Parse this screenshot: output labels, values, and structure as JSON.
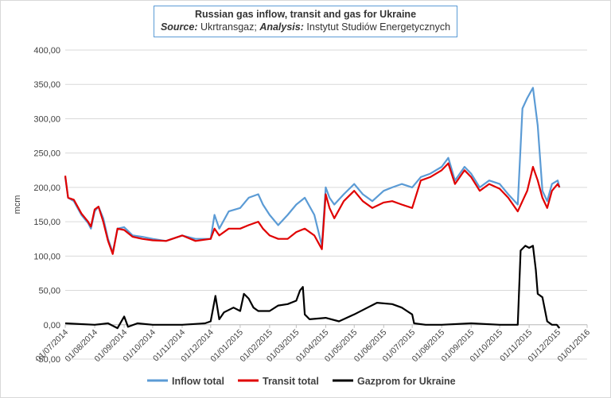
{
  "chart_data": {
    "type": "line",
    "title": "Russian gas inflow, transit and gas for Ukraine",
    "subtitle": {
      "source_label": "Source:",
      "source_value": "Ukrtransgaz;",
      "analysis_label": "Analysis:",
      "analysis_value": "Instytut Studiów Energetycznych"
    },
    "ylabel": "mcm",
    "xlabel": "",
    "ylim": [
      -50,
      400
    ],
    "xlim": [
      "2014-07-01",
      "2016-01-01"
    ],
    "grid": true,
    "legend_position": "bottom",
    "yticks": [
      "-50,00",
      "0,00",
      "50,00",
      "100,00",
      "150,00",
      "200,00",
      "250,00",
      "300,00",
      "350,00",
      "400,00"
    ],
    "xticks": [
      "01/07/2014",
      "01/08/2014",
      "01/09/2014",
      "01/10/2014",
      "01/11/2014",
      "01/12/2014",
      "01/01/2015",
      "01/02/2015",
      "01/03/2015",
      "01/04/2015",
      "01/05/2015",
      "01/06/2015",
      "01/07/2015",
      "01/08/2015",
      "01/09/2015",
      "01/10/2015",
      "01/11/2015",
      "01/12/2015",
      "01/01/2016"
    ],
    "series": [
      {
        "name": "Inflow total",
        "color": "#5b9bd5",
        "points": [
          [
            "2014-07-01",
            215
          ],
          [
            "2014-07-04",
            185
          ],
          [
            "2014-07-10",
            180
          ],
          [
            "2014-07-18",
            160
          ],
          [
            "2014-07-25",
            148
          ],
          [
            "2014-07-28",
            140
          ],
          [
            "2014-08-01",
            165
          ],
          [
            "2014-08-05",
            172
          ],
          [
            "2014-08-10",
            155
          ],
          [
            "2014-08-15",
            125
          ],
          [
            "2014-08-20",
            105
          ],
          [
            "2014-08-25",
            140
          ],
          [
            "2014-09-01",
            142
          ],
          [
            "2014-09-10",
            130
          ],
          [
            "2014-09-20",
            128
          ],
          [
            "2014-10-01",
            125
          ],
          [
            "2014-10-15",
            122
          ],
          [
            "2014-11-01",
            130
          ],
          [
            "2014-11-15",
            125
          ],
          [
            "2014-12-01",
            125
          ],
          [
            "2014-12-05",
            160
          ],
          [
            "2014-12-10",
            140
          ],
          [
            "2014-12-20",
            165
          ],
          [
            "2015-01-01",
            170
          ],
          [
            "2015-01-10",
            185
          ],
          [
            "2015-01-20",
            190
          ],
          [
            "2015-01-25",
            175
          ],
          [
            "2015-02-01",
            160
          ],
          [
            "2015-02-10",
            145
          ],
          [
            "2015-02-20",
            160
          ],
          [
            "2015-03-01",
            175
          ],
          [
            "2015-03-10",
            185
          ],
          [
            "2015-03-20",
            160
          ],
          [
            "2015-03-28",
            115
          ],
          [
            "2015-04-01",
            200
          ],
          [
            "2015-04-05",
            185
          ],
          [
            "2015-04-10",
            175
          ],
          [
            "2015-04-20",
            190
          ],
          [
            "2015-05-01",
            205
          ],
          [
            "2015-05-10",
            190
          ],
          [
            "2015-05-20",
            180
          ],
          [
            "2015-06-01",
            195
          ],
          [
            "2015-06-10",
            200
          ],
          [
            "2015-06-20",
            205
          ],
          [
            "2015-07-01",
            200
          ],
          [
            "2015-07-10",
            215
          ],
          [
            "2015-07-20",
            220
          ],
          [
            "2015-08-01",
            230
          ],
          [
            "2015-08-08",
            243
          ],
          [
            "2015-08-15",
            210
          ],
          [
            "2015-08-25",
            230
          ],
          [
            "2015-09-01",
            220
          ],
          [
            "2015-09-10",
            200
          ],
          [
            "2015-09-20",
            210
          ],
          [
            "2015-10-01",
            205
          ],
          [
            "2015-10-10",
            190
          ],
          [
            "2015-10-20",
            175
          ],
          [
            "2015-10-25",
            315
          ],
          [
            "2015-10-30",
            330
          ],
          [
            "2015-11-05",
            345
          ],
          [
            "2015-11-10",
            290
          ],
          [
            "2015-11-15",
            195
          ],
          [
            "2015-11-20",
            180
          ],
          [
            "2015-11-25",
            205
          ],
          [
            "2015-12-01",
            210
          ],
          [
            "2015-12-03",
            200
          ]
        ]
      },
      {
        "name": "Transit total",
        "color": "#e00000",
        "points": [
          [
            "2014-07-01",
            217
          ],
          [
            "2014-07-04",
            185
          ],
          [
            "2014-07-10",
            182
          ],
          [
            "2014-07-18",
            162
          ],
          [
            "2014-07-25",
            150
          ],
          [
            "2014-07-28",
            143
          ],
          [
            "2014-08-01",
            168
          ],
          [
            "2014-08-05",
            172
          ],
          [
            "2014-08-10",
            150
          ],
          [
            "2014-08-15",
            122
          ],
          [
            "2014-08-20",
            103
          ],
          [
            "2014-08-25",
            140
          ],
          [
            "2014-09-01",
            138
          ],
          [
            "2014-09-10",
            128
          ],
          [
            "2014-09-20",
            125
          ],
          [
            "2014-10-01",
            123
          ],
          [
            "2014-10-15",
            122
          ],
          [
            "2014-11-01",
            130
          ],
          [
            "2014-11-15",
            122
          ],
          [
            "2014-12-01",
            125
          ],
          [
            "2014-12-05",
            140
          ],
          [
            "2014-12-10",
            130
          ],
          [
            "2014-12-20",
            140
          ],
          [
            "2015-01-01",
            140
          ],
          [
            "2015-01-10",
            145
          ],
          [
            "2015-01-20",
            150
          ],
          [
            "2015-01-25",
            140
          ],
          [
            "2015-02-01",
            130
          ],
          [
            "2015-02-10",
            125
          ],
          [
            "2015-02-20",
            125
          ],
          [
            "2015-03-01",
            135
          ],
          [
            "2015-03-10",
            140
          ],
          [
            "2015-03-20",
            130
          ],
          [
            "2015-03-28",
            110
          ],
          [
            "2015-04-01",
            190
          ],
          [
            "2015-04-05",
            170
          ],
          [
            "2015-04-10",
            155
          ],
          [
            "2015-04-20",
            180
          ],
          [
            "2015-05-01",
            195
          ],
          [
            "2015-05-10",
            180
          ],
          [
            "2015-05-20",
            170
          ],
          [
            "2015-06-01",
            178
          ],
          [
            "2015-06-10",
            180
          ],
          [
            "2015-06-20",
            175
          ],
          [
            "2015-07-01",
            170
          ],
          [
            "2015-07-10",
            210
          ],
          [
            "2015-07-20",
            215
          ],
          [
            "2015-08-01",
            225
          ],
          [
            "2015-08-08",
            235
          ],
          [
            "2015-08-15",
            205
          ],
          [
            "2015-08-25",
            225
          ],
          [
            "2015-09-01",
            215
          ],
          [
            "2015-09-10",
            195
          ],
          [
            "2015-09-20",
            205
          ],
          [
            "2015-10-01",
            198
          ],
          [
            "2015-10-10",
            185
          ],
          [
            "2015-10-20",
            165
          ],
          [
            "2015-10-25",
            180
          ],
          [
            "2015-10-30",
            195
          ],
          [
            "2015-11-05",
            230
          ],
          [
            "2015-11-10",
            210
          ],
          [
            "2015-11-15",
            185
          ],
          [
            "2015-11-20",
            170
          ],
          [
            "2015-11-25",
            195
          ],
          [
            "2015-12-01",
            205
          ],
          [
            "2015-12-03",
            200
          ]
        ]
      },
      {
        "name": "Gazprom for Ukraine",
        "color": "#000000",
        "points": [
          [
            "2014-07-01",
            2
          ],
          [
            "2014-08-01",
            0
          ],
          [
            "2014-08-15",
            2
          ],
          [
            "2014-08-25",
            -5
          ],
          [
            "2014-09-01",
            12
          ],
          [
            "2014-09-05",
            -3
          ],
          [
            "2014-09-15",
            2
          ],
          [
            "2014-10-01",
            0
          ],
          [
            "2014-11-01",
            0
          ],
          [
            "2014-11-25",
            2
          ],
          [
            "2014-12-01",
            5
          ],
          [
            "2014-12-06",
            42
          ],
          [
            "2014-12-10",
            8
          ],
          [
            "2014-12-15",
            18
          ],
          [
            "2014-12-25",
            25
          ],
          [
            "2015-01-01",
            20
          ],
          [
            "2015-01-05",
            45
          ],
          [
            "2015-01-10",
            38
          ],
          [
            "2015-01-15",
            25
          ],
          [
            "2015-01-20",
            20
          ],
          [
            "2015-02-01",
            20
          ],
          [
            "2015-02-10",
            28
          ],
          [
            "2015-02-20",
            30
          ],
          [
            "2015-03-01",
            35
          ],
          [
            "2015-03-05",
            50
          ],
          [
            "2015-03-08",
            55
          ],
          [
            "2015-03-10",
            15
          ],
          [
            "2015-03-15",
            8
          ],
          [
            "2015-04-01",
            10
          ],
          [
            "2015-04-15",
            5
          ],
          [
            "2015-05-01",
            15
          ],
          [
            "2015-05-15",
            25
          ],
          [
            "2015-05-25",
            32
          ],
          [
            "2015-06-10",
            30
          ],
          [
            "2015-06-20",
            25
          ],
          [
            "2015-07-01",
            15
          ],
          [
            "2015-07-03",
            2
          ],
          [
            "2015-07-15",
            0
          ],
          [
            "2015-08-01",
            0
          ],
          [
            "2015-09-01",
            2
          ],
          [
            "2015-10-01",
            0
          ],
          [
            "2015-10-20",
            0
          ],
          [
            "2015-10-23",
            108
          ],
          [
            "2015-10-28",
            115
          ],
          [
            "2015-11-01",
            112
          ],
          [
            "2015-11-05",
            115
          ],
          [
            "2015-11-08",
            80
          ],
          [
            "2015-11-10",
            45
          ],
          [
            "2015-11-15",
            40
          ],
          [
            "2015-11-20",
            5
          ],
          [
            "2015-11-25",
            0
          ],
          [
            "2015-11-30",
            0
          ],
          [
            "2015-12-03",
            -5
          ]
        ]
      }
    ]
  }
}
